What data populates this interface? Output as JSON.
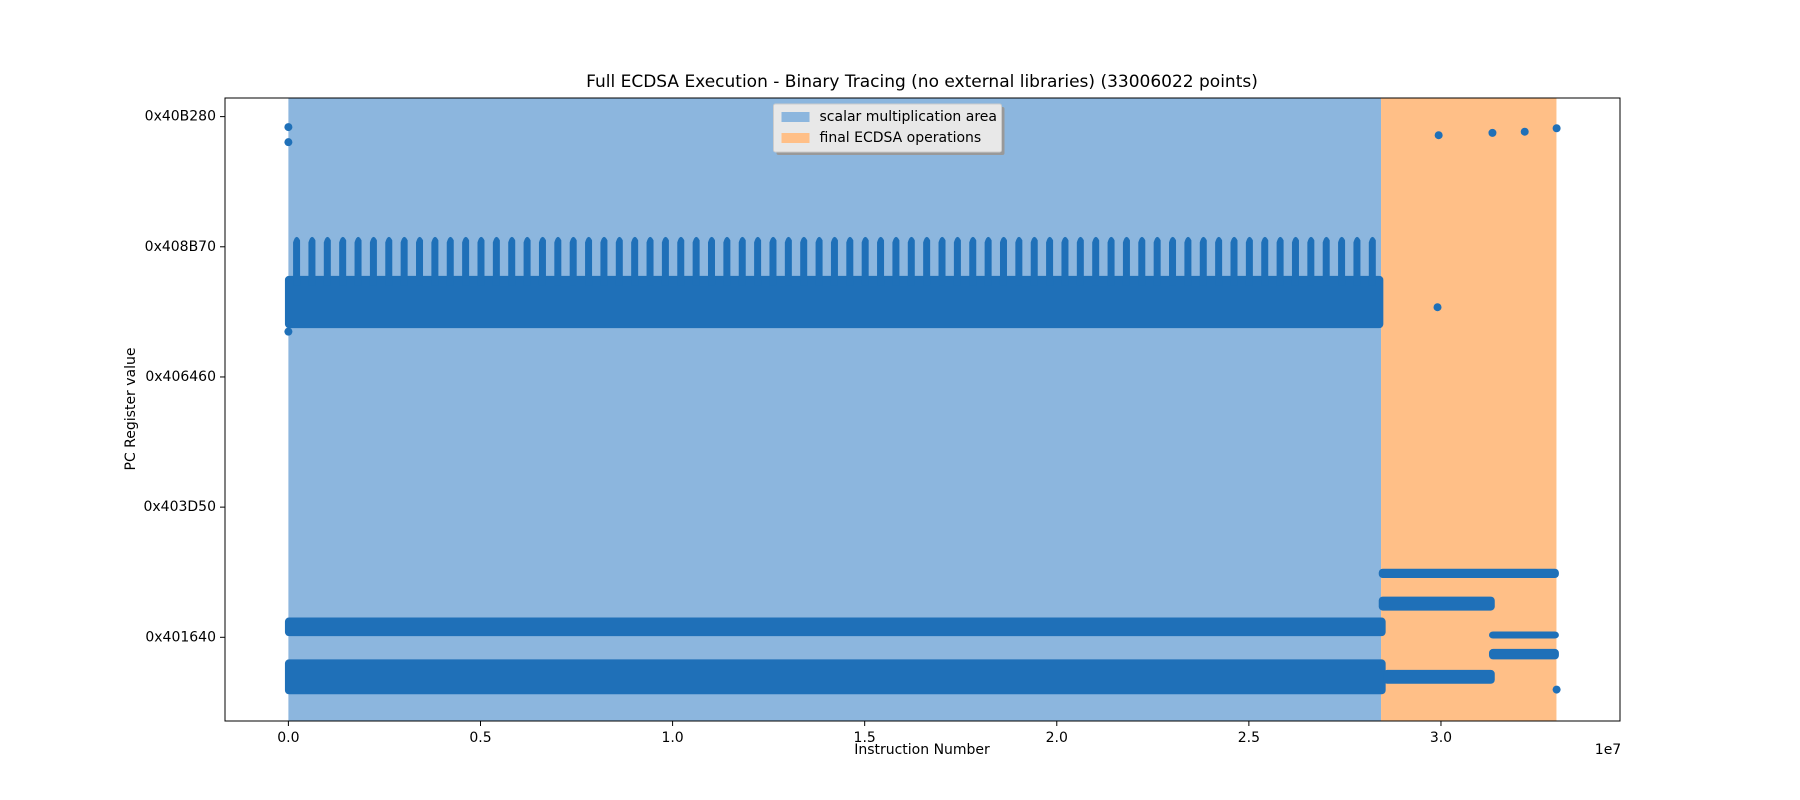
{
  "chart_data": {
    "type": "scatter",
    "title": "Full ECDSA Execution - Binary Tracing (no external libraries) (33006022 points)",
    "xlabel": "Instruction Number",
    "ylabel": "PC Register value",
    "x_offset_label": "1e7",
    "xlim": [
      -1650000,
      34660000
    ],
    "ylim": [
      4193570,
      4241430
    ],
    "xticks": [
      {
        "value": 0,
        "label": "0.0"
      },
      {
        "value": 5000000,
        "label": "0.5"
      },
      {
        "value": 10000000,
        "label": "1.0"
      },
      {
        "value": 15000000,
        "label": "1.5"
      },
      {
        "value": 20000000,
        "label": "2.0"
      },
      {
        "value": 25000000,
        "label": "2.5"
      },
      {
        "value": 30000000,
        "label": "3.0"
      }
    ],
    "yticks": [
      {
        "value": 4200000,
        "label": "0x401640"
      },
      {
        "value": 4210000,
        "label": "0x403D50"
      },
      {
        "value": 4220000,
        "label": "0x406460"
      },
      {
        "value": 4230000,
        "label": "0x408B70"
      },
      {
        "value": 4240000,
        "label": "0x40B280"
      }
    ],
    "legend": "upper center",
    "spans": [
      {
        "name": "scalar multiplication area",
        "color": "#8cb6de",
        "x": [
          0,
          28440000
        ]
      },
      {
        "name": "final ECDSA operations",
        "color": "#ffbf87",
        "x": [
          28440000,
          33006022
        ]
      }
    ],
    "color": "#1f70b8",
    "clusters": [
      {
        "x": [
          -90000,
          28560000
        ],
        "y": [
          4195625,
          4198300
        ]
      },
      {
        "x": [
          -90000,
          28560000
        ],
        "y": [
          4200089,
          4201518
        ]
      },
      {
        "x": [
          -90000,
          28500000
        ],
        "y": [
          4223750,
          4227770
        ]
      },
      {
        "x": [
          28380000,
          33070000
        ],
        "y": [
          4204554,
          4205268
        ]
      },
      {
        "x": [
          28380000,
          31400000
        ],
        "y": [
          4202054,
          4203125
        ]
      },
      {
        "x": [
          28500000,
          31400000
        ],
        "y": [
          4196429,
          4197500
        ]
      },
      {
        "x": [
          31250000,
          33070000
        ],
        "y": [
          4199911,
          4200446
        ]
      },
      {
        "x": [
          31250000,
          33070000
        ],
        "y": [
          4198304,
          4199107
        ]
      }
    ],
    "spike_base": 4227000,
    "spike_top": 4230800,
    "spikes_x": [
      200000,
      600000,
      1000000,
      1400000,
      1800000,
      2200000,
      2600000,
      3000000,
      3400000,
      3800000,
      4200000,
      4600000,
      5000000,
      5400000,
      5800000,
      6200000,
      6600000,
      7000000,
      7400000,
      7800000,
      8200000,
      8600000,
      9000000,
      9400000,
      9800000,
      10200000,
      10600000,
      11000000,
      11400000,
      11800000,
      12200000,
      12600000,
      13000000,
      13400000,
      13800000,
      14200000,
      14600000,
      15000000,
      15400000,
      15800000,
      16200000,
      16600000,
      17000000,
      17400000,
      17800000,
      18200000,
      18600000,
      19000000,
      19400000,
      19800000,
      20200000,
      20600000,
      21000000,
      21400000,
      21800000,
      22200000,
      22600000,
      23000000,
      23400000,
      23800000,
      24200000,
      24600000,
      25000000,
      25400000,
      25800000,
      26200000,
      26600000,
      27000000,
      27400000,
      27800000,
      28200000
    ],
    "x": [
      0,
      0,
      29940000,
      31340000,
      32180000,
      33010000,
      29910000,
      33010000,
      0
    ],
    "values": [
      4239196,
      4238036,
      4238571,
      4238750,
      4238839,
      4239107,
      4225357,
      4195982,
      4223482
    ]
  }
}
